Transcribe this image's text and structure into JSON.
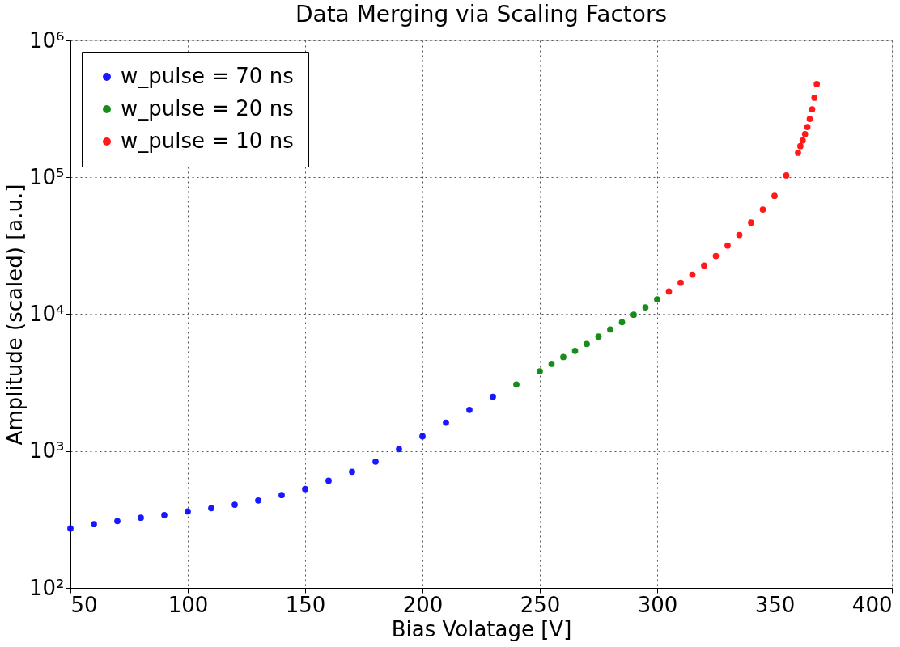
{
  "chart_data": {
    "type": "scatter",
    "title": "Data Merging via Scaling Factors",
    "xlabel": "Bias Volatage [V]",
    "ylabel": "Amplitude (scaled) [a.u.]",
    "log": "y",
    "grid": true,
    "legend": "top left",
    "marker": "circle",
    "xlim": [
      50,
      400
    ],
    "xticks": [
      50,
      100,
      150,
      200,
      250,
      300,
      350,
      400
    ],
    "ylim": [
      100,
      1000000
    ],
    "yticks": [
      {
        "value": 100,
        "label": "10²"
      },
      {
        "value": 1000,
        "label": "10³"
      },
      {
        "value": 10000,
        "label": "10⁴"
      },
      {
        "value": 100000,
        "label": "10⁵"
      },
      {
        "value": 1000000,
        "label": "10⁶"
      }
    ],
    "series": [
      {
        "name": "w_pulse = 70 ns",
        "color": "#0000ff",
        "x": [
          50,
          60,
          70,
          80,
          90,
          100,
          110,
          120,
          130,
          140,
          150,
          160,
          170,
          180,
          190,
          200,
          210,
          220,
          230
        ],
        "values": [
          272,
          292,
          308,
          326,
          341,
          362,
          383,
          406,
          436,
          477,
          528,
          607,
          706,
          837,
          1033,
          1282,
          1614,
          2000,
          2496
        ]
      },
      {
        "name": "w_pulse = 20 ns",
        "color": "#008000",
        "x": [
          240,
          250,
          255,
          260,
          265,
          270,
          275,
          280,
          285,
          290,
          295,
          300
        ],
        "values": [
          3069,
          3826,
          4334,
          4868,
          5400,
          6060,
          6860,
          7730,
          8750,
          9910,
          11220,
          12830
        ]
      },
      {
        "name": "w_pulse = 10 ns",
        "color": "#ff0000",
        "x": [
          305,
          310,
          315,
          320,
          325,
          330,
          335,
          340,
          345,
          350,
          355,
          360,
          361,
          362,
          363,
          364,
          365,
          366,
          367,
          368
        ],
        "values": [
          14660,
          16960,
          19450,
          22640,
          26600,
          31700,
          37900,
          46700,
          58200,
          73200,
          103200,
          151000,
          169000,
          186000,
          207000,
          233000,
          267000,
          314000,
          381000,
          480000
        ]
      }
    ]
  }
}
